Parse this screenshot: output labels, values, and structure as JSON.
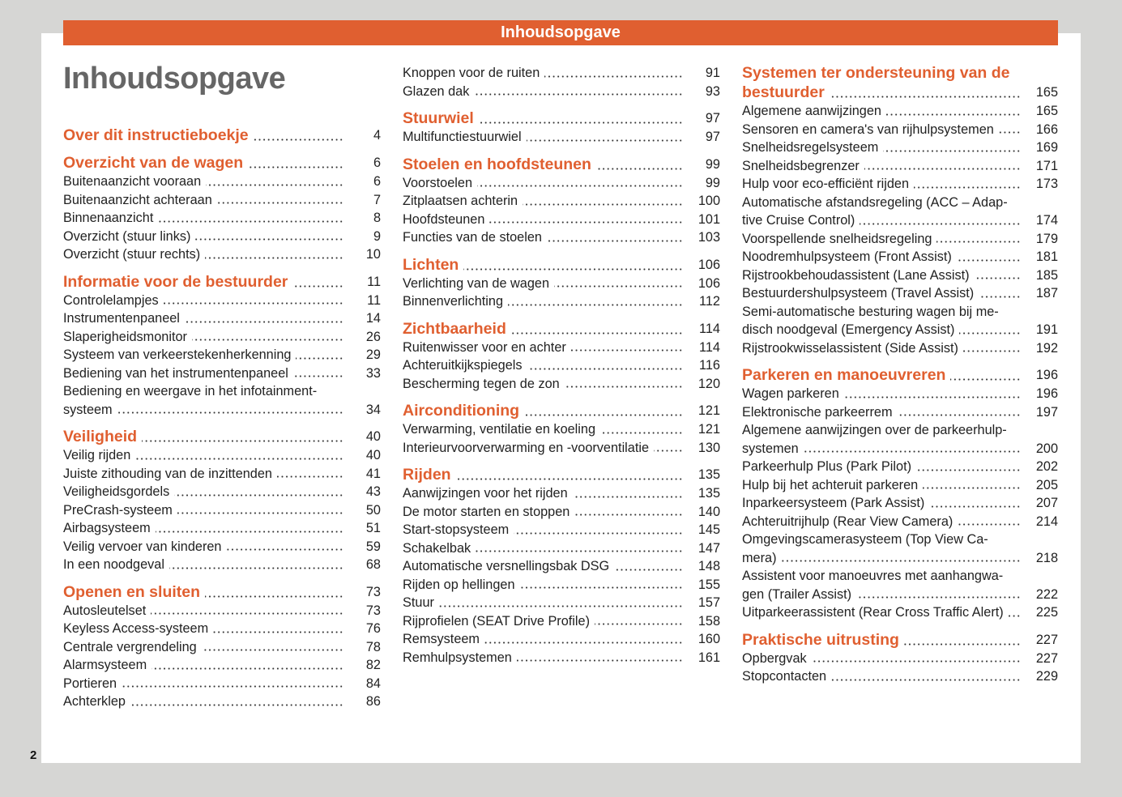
{
  "banner": "Inhoudsopgave",
  "title": "Inhoudsopgave",
  "page_number": "2",
  "colors": {
    "accent": "#e05f30",
    "title": "#666666",
    "background": "#d6d6d4"
  },
  "columns": [
    {
      "entries": [
        {
          "type": "h",
          "lines": [
            "Over dit instructieboekje"
          ],
          "page": "4"
        },
        {
          "type": "h",
          "lines": [
            "Overzicht van de wagen"
          ],
          "page": "6"
        },
        {
          "type": "i",
          "lines": [
            "Buitenaanzicht vooraan"
          ],
          "page": "6"
        },
        {
          "type": "i",
          "lines": [
            "Buitenaanzicht achteraan"
          ],
          "page": "7"
        },
        {
          "type": "i",
          "lines": [
            "Binnenaanzicht"
          ],
          "page": "8"
        },
        {
          "type": "i",
          "lines": [
            "Overzicht (stuur links)"
          ],
          "page": "9"
        },
        {
          "type": "i",
          "lines": [
            "Overzicht (stuur rechts)"
          ],
          "page": "10"
        },
        {
          "type": "h",
          "lines": [
            "Informatie voor de bestuurder"
          ],
          "page": "11"
        },
        {
          "type": "i",
          "lines": [
            "Controlelampjes"
          ],
          "page": "11"
        },
        {
          "type": "i",
          "lines": [
            "Instrumentenpaneel"
          ],
          "page": "14"
        },
        {
          "type": "i",
          "lines": [
            "Slaperigheidsmonitor"
          ],
          "page": "26"
        },
        {
          "type": "i",
          "lines": [
            "Systeem van verkeerstekenherkenning"
          ],
          "page": "29"
        },
        {
          "type": "i",
          "lines": [
            "Bediening van het instrumentenpaneel"
          ],
          "page": "33"
        },
        {
          "type": "i",
          "lines": [
            "Bediening en weergave in het infotainment-",
            "systeem"
          ],
          "page": "34"
        },
        {
          "type": "h",
          "lines": [
            "Veiligheid"
          ],
          "page": "40"
        },
        {
          "type": "i",
          "lines": [
            "Veilig rijden"
          ],
          "page": "40"
        },
        {
          "type": "i",
          "lines": [
            "Juiste zithouding van de inzittenden"
          ],
          "page": "41"
        },
        {
          "type": "i",
          "lines": [
            "Veiligheidsgordels"
          ],
          "page": "43"
        },
        {
          "type": "i",
          "lines": [
            "PreCrash-systeem"
          ],
          "page": "50"
        },
        {
          "type": "i",
          "lines": [
            "Airbagsysteem"
          ],
          "page": "51"
        },
        {
          "type": "i",
          "lines": [
            "Veilig vervoer van kinderen"
          ],
          "page": "59"
        },
        {
          "type": "i",
          "lines": [
            "In een noodgeval"
          ],
          "page": "68"
        },
        {
          "type": "h",
          "lines": [
            "Openen en sluiten"
          ],
          "page": "73"
        },
        {
          "type": "i",
          "lines": [
            "Autosleutelset"
          ],
          "page": "73"
        },
        {
          "type": "i",
          "lines": [
            "Keyless Access-systeem"
          ],
          "page": "76"
        },
        {
          "type": "i",
          "lines": [
            "Centrale vergrendeling"
          ],
          "page": "78"
        },
        {
          "type": "i",
          "lines": [
            "Alarmsysteem"
          ],
          "page": "82"
        },
        {
          "type": "i",
          "lines": [
            "Portieren"
          ],
          "page": "84"
        },
        {
          "type": "i",
          "lines": [
            "Achterklep"
          ],
          "page": "86"
        }
      ]
    },
    {
      "entries": [
        {
          "type": "i",
          "lines": [
            "Knoppen voor de ruiten"
          ],
          "page": "91"
        },
        {
          "type": "i",
          "lines": [
            "Glazen dak"
          ],
          "page": "93"
        },
        {
          "type": "h",
          "lines": [
            "Stuurwiel"
          ],
          "page": "97"
        },
        {
          "type": "i",
          "lines": [
            "Multifunctiestuurwiel"
          ],
          "page": "97"
        },
        {
          "type": "h",
          "lines": [
            "Stoelen en hoofdsteunen"
          ],
          "page": "99"
        },
        {
          "type": "i",
          "lines": [
            "Voorstoelen"
          ],
          "page": "99"
        },
        {
          "type": "i",
          "lines": [
            "Zitplaatsen achterin"
          ],
          "page": "100"
        },
        {
          "type": "i",
          "lines": [
            "Hoofdsteunen"
          ],
          "page": "101"
        },
        {
          "type": "i",
          "lines": [
            "Functies van de stoelen"
          ],
          "page": "103"
        },
        {
          "type": "h",
          "lines": [
            "Lichten"
          ],
          "page": "106"
        },
        {
          "type": "i",
          "lines": [
            "Verlichting van de wagen"
          ],
          "page": "106"
        },
        {
          "type": "i",
          "lines": [
            "Binnenverlichting"
          ],
          "page": "112"
        },
        {
          "type": "h",
          "lines": [
            "Zichtbaarheid"
          ],
          "page": "114"
        },
        {
          "type": "i",
          "lines": [
            "Ruitenwisser voor en achter"
          ],
          "page": "114"
        },
        {
          "type": "i",
          "lines": [
            "Achteruitkijkspiegels"
          ],
          "page": "116"
        },
        {
          "type": "i",
          "lines": [
            "Bescherming tegen de zon"
          ],
          "page": "120"
        },
        {
          "type": "h",
          "lines": [
            "Airconditioning"
          ],
          "page": "121"
        },
        {
          "type": "i",
          "lines": [
            "Verwarming, ventilatie en koeling"
          ],
          "page": "121"
        },
        {
          "type": "i",
          "lines": [
            "Interieurvoorverwarming en -voorventilatie"
          ],
          "page": "130"
        },
        {
          "type": "h",
          "lines": [
            "Rijden"
          ],
          "page": "135"
        },
        {
          "type": "i",
          "lines": [
            "Aanwijzingen voor het rijden"
          ],
          "page": "135"
        },
        {
          "type": "i",
          "lines": [
            "De motor starten en stoppen"
          ],
          "page": "140"
        },
        {
          "type": "i",
          "lines": [
            "Start-stopsysteem"
          ],
          "page": "145"
        },
        {
          "type": "i",
          "lines": [
            "Schakelbak"
          ],
          "page": "147"
        },
        {
          "type": "i",
          "lines": [
            "Automatische versnellingsbak DSG"
          ],
          "page": "148"
        },
        {
          "type": "i",
          "lines": [
            "Rijden op hellingen"
          ],
          "page": "155"
        },
        {
          "type": "i",
          "lines": [
            "Stuur"
          ],
          "page": "157"
        },
        {
          "type": "i",
          "lines": [
            "Rijprofielen (SEAT Drive Profile)"
          ],
          "page": "158"
        },
        {
          "type": "i",
          "lines": [
            "Remsysteem"
          ],
          "page": "160"
        },
        {
          "type": "i",
          "lines": [
            "Remhulpsystemen"
          ],
          "page": "161"
        }
      ]
    },
    {
      "entries": [
        {
          "type": "h",
          "lines": [
            "Systemen ter ondersteuning van de",
            "bestuurder"
          ],
          "page": "165"
        },
        {
          "type": "i",
          "lines": [
            "Algemene aanwijzingen"
          ],
          "page": "165"
        },
        {
          "type": "i",
          "lines": [
            "Sensoren en camera's van rijhulpsystemen"
          ],
          "page": "166"
        },
        {
          "type": "i",
          "lines": [
            "Snelheidsregelsysteem"
          ],
          "page": "169"
        },
        {
          "type": "i",
          "lines": [
            "Snelheidsbegrenzer"
          ],
          "page": "171"
        },
        {
          "type": "i",
          "lines": [
            "Hulp voor eco-efficiënt rijden"
          ],
          "page": "173"
        },
        {
          "type": "i",
          "lines": [
            "Automatische afstandsregeling (ACC – Adap-",
            "tive Cruise Control)"
          ],
          "page": "174"
        },
        {
          "type": "i",
          "lines": [
            "Voorspellende snelheidsregeling"
          ],
          "page": "179"
        },
        {
          "type": "i",
          "lines": [
            "Noodremhulpsysteem (Front Assist)"
          ],
          "page": "181"
        },
        {
          "type": "i",
          "lines": [
            "Rijstrookbehoudassistent (Lane Assist)"
          ],
          "page": "185"
        },
        {
          "type": "i",
          "lines": [
            "Bestuurdershulpsysteem (Travel Assist)"
          ],
          "page": "187"
        },
        {
          "type": "i",
          "lines": [
            "Semi-automatische besturing wagen bij me-",
            "disch noodgeval (Emergency Assist)"
          ],
          "page": "191"
        },
        {
          "type": "i",
          "lines": [
            "Rijstrookwisselassistent (Side Assist)"
          ],
          "page": "192"
        },
        {
          "type": "h",
          "lines": [
            "Parkeren en manoeuvreren"
          ],
          "page": "196"
        },
        {
          "type": "i",
          "lines": [
            "Wagen parkeren"
          ],
          "page": "196"
        },
        {
          "type": "i",
          "lines": [
            "Elektronische parkeerrem"
          ],
          "page": "197"
        },
        {
          "type": "i",
          "lines": [
            "Algemene aanwijzingen over de parkeerhulp-",
            "systemen"
          ],
          "page": "200"
        },
        {
          "type": "i",
          "lines": [
            "Parkeerhulp Plus (Park Pilot)"
          ],
          "page": "202"
        },
        {
          "type": "i",
          "lines": [
            "Hulp bij het achteruit parkeren"
          ],
          "page": "205"
        },
        {
          "type": "i",
          "lines": [
            "Inparkeersysteem (Park Assist)"
          ],
          "page": "207"
        },
        {
          "type": "i",
          "lines": [
            "Achteruitrijhulp (Rear View Camera)"
          ],
          "page": "214"
        },
        {
          "type": "i",
          "lines": [
            "Omgevingscamerasysteem (Top View Ca-",
            "mera)"
          ],
          "page": "218"
        },
        {
          "type": "i",
          "lines": [
            "Assistent voor manoeuvres met aanhangwa-",
            "gen (Trailer Assist)"
          ],
          "page": "222"
        },
        {
          "type": "i",
          "lines": [
            "Uitparkeerassistent (Rear Cross Traffic Alert)"
          ],
          "page": "225"
        },
        {
          "type": "h",
          "lines": [
            "Praktische uitrusting"
          ],
          "page": "227"
        },
        {
          "type": "i",
          "lines": [
            "Opbergvak"
          ],
          "page": "227"
        },
        {
          "type": "i",
          "lines": [
            "Stopcontacten"
          ],
          "page": "229"
        }
      ]
    }
  ]
}
